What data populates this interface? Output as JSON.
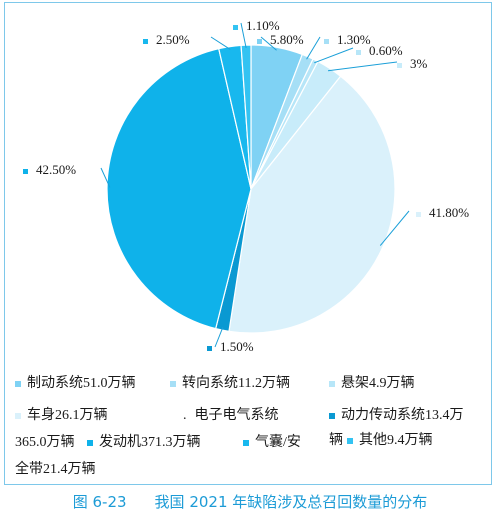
{
  "chart_data": {
    "type": "pie",
    "slices": [
      {
        "label": "5.80%",
        "value": 5.8,
        "color": "#7fd2f4"
      },
      {
        "label": "1.30%",
        "value": 1.3,
        "color": "#a6dff6"
      },
      {
        "label": "0.60%",
        "value": 0.6,
        "color": "#b7e6f8"
      },
      {
        "label": "3%",
        "value": 3.0,
        "color": "#c8ecfa"
      },
      {
        "label": "41.80%",
        "value": 41.8,
        "color": "#daf1fb"
      },
      {
        "label": "1.50%",
        "value": 1.5,
        "color": "#0a99d2"
      },
      {
        "label": "42.50%",
        "value": 42.5,
        "color": "#0fb2ea"
      },
      {
        "label": "2.50%",
        "value": 2.5,
        "color": "#18b8ee"
      },
      {
        "label": "1.10%",
        "value": 1.1,
        "color": "#33c3f2"
      }
    ],
    "legend": [
      {
        "text": "制动系统51.0万辆",
        "color": "#7fd2f4"
      },
      {
        "text": "转向系统11.2万辆",
        "color": "#a6dff6"
      },
      {
        "text": "悬架4.9万辆",
        "color": "#b7e6f8"
      },
      {
        "text": "车身26.1万辆",
        "color": "#daf1fb"
      },
      {
        "text": "电子电气系统",
        "color": "#1a1a1a"
      },
      {
        "text": "动力传动系统13.4万",
        "color": "#0a99d2"
      },
      {
        "text": "365.0万辆",
        "color": ""
      },
      {
        "text": "发动机371.3万辆",
        "color": "#0fb2ea"
      },
      {
        "text": "气囊/安",
        "color": "#18b8ee"
      },
      {
        "text": "辆",
        "color": ""
      },
      {
        "text": "其他9.4万辆",
        "color": "#33c3f2"
      },
      {
        "text": "全带21.4万辆",
        "color": ""
      }
    ],
    "legend_placement": "bottom"
  },
  "caption": {
    "figure_no": "图 6-23",
    "title": "我国 2021 年缺陷涉及总召回数量的分布"
  }
}
